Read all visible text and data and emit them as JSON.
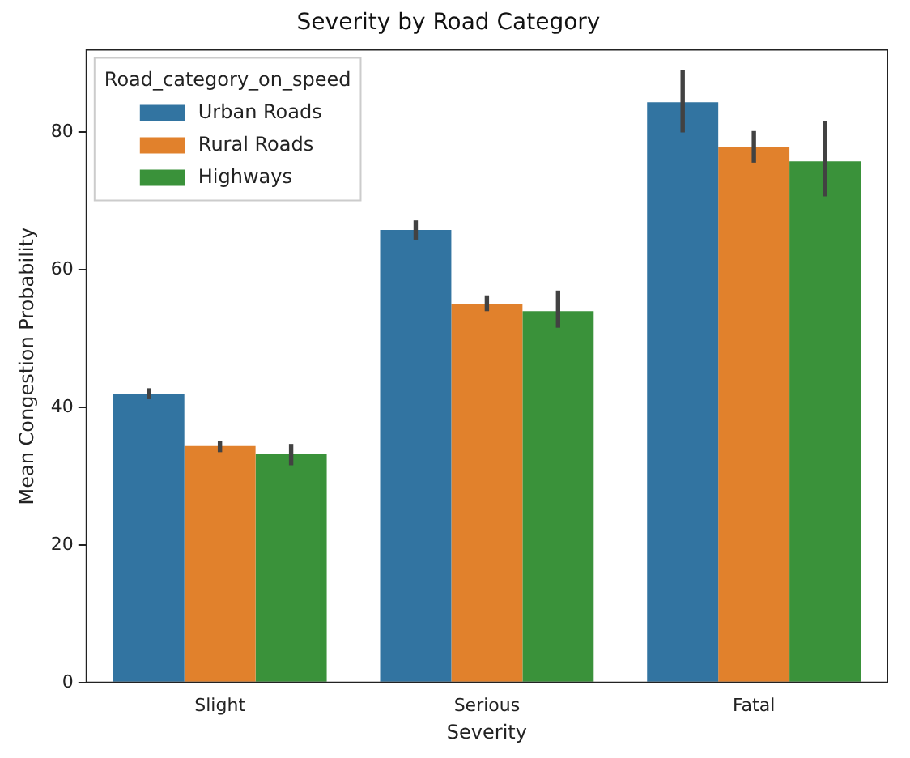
{
  "chart_data": {
    "type": "bar",
    "title": "Severity by Road Category",
    "xlabel": "Severity",
    "ylabel": "Mean Congestion Probability",
    "legend_title": "Road_category_on_speed",
    "categories": [
      "Slight",
      "Serious",
      "Fatal"
    ],
    "series": [
      {
        "name": "Urban Roads",
        "color": "#3274a1",
        "values": [
          41.9,
          65.8,
          84.4
        ],
        "errors": [
          [
            41.2,
            42.8
          ],
          [
            64.4,
            67.2
          ],
          [
            80.0,
            89.1
          ]
        ]
      },
      {
        "name": "Rural Roads",
        "color": "#e1812c",
        "values": [
          34.4,
          55.1,
          77.9
        ],
        "errors": [
          [
            33.5,
            35.1
          ],
          [
            54.0,
            56.3
          ],
          [
            75.6,
            80.2
          ]
        ]
      },
      {
        "name": "Highways",
        "color": "#3a923a",
        "values": [
          33.3,
          54.0,
          75.8
        ],
        "errors": [
          [
            31.6,
            34.7
          ],
          [
            51.6,
            57.0
          ],
          [
            70.7,
            81.6
          ]
        ]
      }
    ],
    "ylim": [
      0,
      92
    ],
    "yticks": [
      0,
      20,
      40,
      60,
      80
    ],
    "grid": false,
    "legend": "top left"
  }
}
